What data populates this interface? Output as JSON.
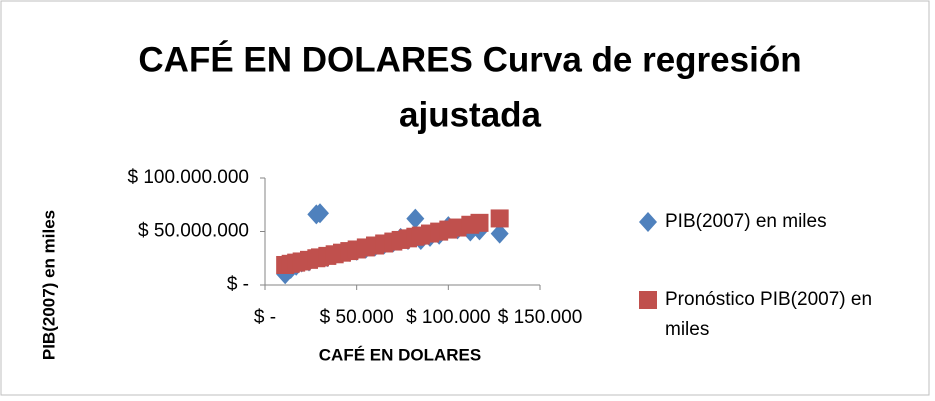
{
  "chart_data": {
    "type": "scatter",
    "title": "CAFÉ EN DOLARES Curva de regresión ajustada",
    "x_label": "CAFÉ EN DOLARES",
    "y_label": "PIB(2007) en miles",
    "x": [
      11000,
      14000,
      17000,
      20000,
      24000,
      28000,
      30000,
      34000,
      38000,
      42000,
      46000,
      50000,
      55000,
      60000,
      65000,
      70000,
      74000,
      78000,
      82000,
      85000,
      90000,
      95000,
      100000,
      105000,
      112000,
      117000,
      128000
    ],
    "series": [
      {
        "name": "PIB(2007) en miles",
        "color": "#4f81bd",
        "marker": "diamond",
        "values": [
          10000000,
          15000000,
          18000000,
          21000000,
          22000000,
          66000000,
          67000000,
          26000000,
          28000000,
          30000000,
          31000000,
          32000000,
          34000000,
          36000000,
          38000000,
          40000000,
          44000000,
          42000000,
          62000000,
          42000000,
          45000000,
          47000000,
          55000000,
          52000000,
          50000000,
          51000000,
          48000000
        ]
      },
      {
        "name": "Pronóstico PIB(2007) en miles",
        "color": "#c0504d",
        "marker": "square",
        "values": [
          18700000,
          19800000,
          20900000,
          22000000,
          23500000,
          25000000,
          25800000,
          27200000,
          28700000,
          30200000,
          31700000,
          33200000,
          35100000,
          36900000,
          38800000,
          40600000,
          42100000,
          43600000,
          45100000,
          46200000,
          48100000,
          49900000,
          51800000,
          53700000,
          56300000,
          58100000,
          62200000
        ]
      }
    ],
    "xlim": [
      0,
      150000
    ],
    "xticks": [
      {
        "value": 0,
        "label": "$ -"
      },
      {
        "value": 50000,
        "label": "$ 50.000"
      },
      {
        "value": 100000,
        "label": "$ 100.000"
      },
      {
        "value": 150000,
        "label": "$ 150.000"
      }
    ],
    "ylim": [
      0,
      100000000
    ],
    "yticks": [
      {
        "value": 0,
        "label": "$ -"
      },
      {
        "value": 50000000,
        "label": "$ 50.000.000"
      },
      {
        "value": 100000000,
        "label": "$ 100.000.000"
      }
    ],
    "grid": false
  }
}
